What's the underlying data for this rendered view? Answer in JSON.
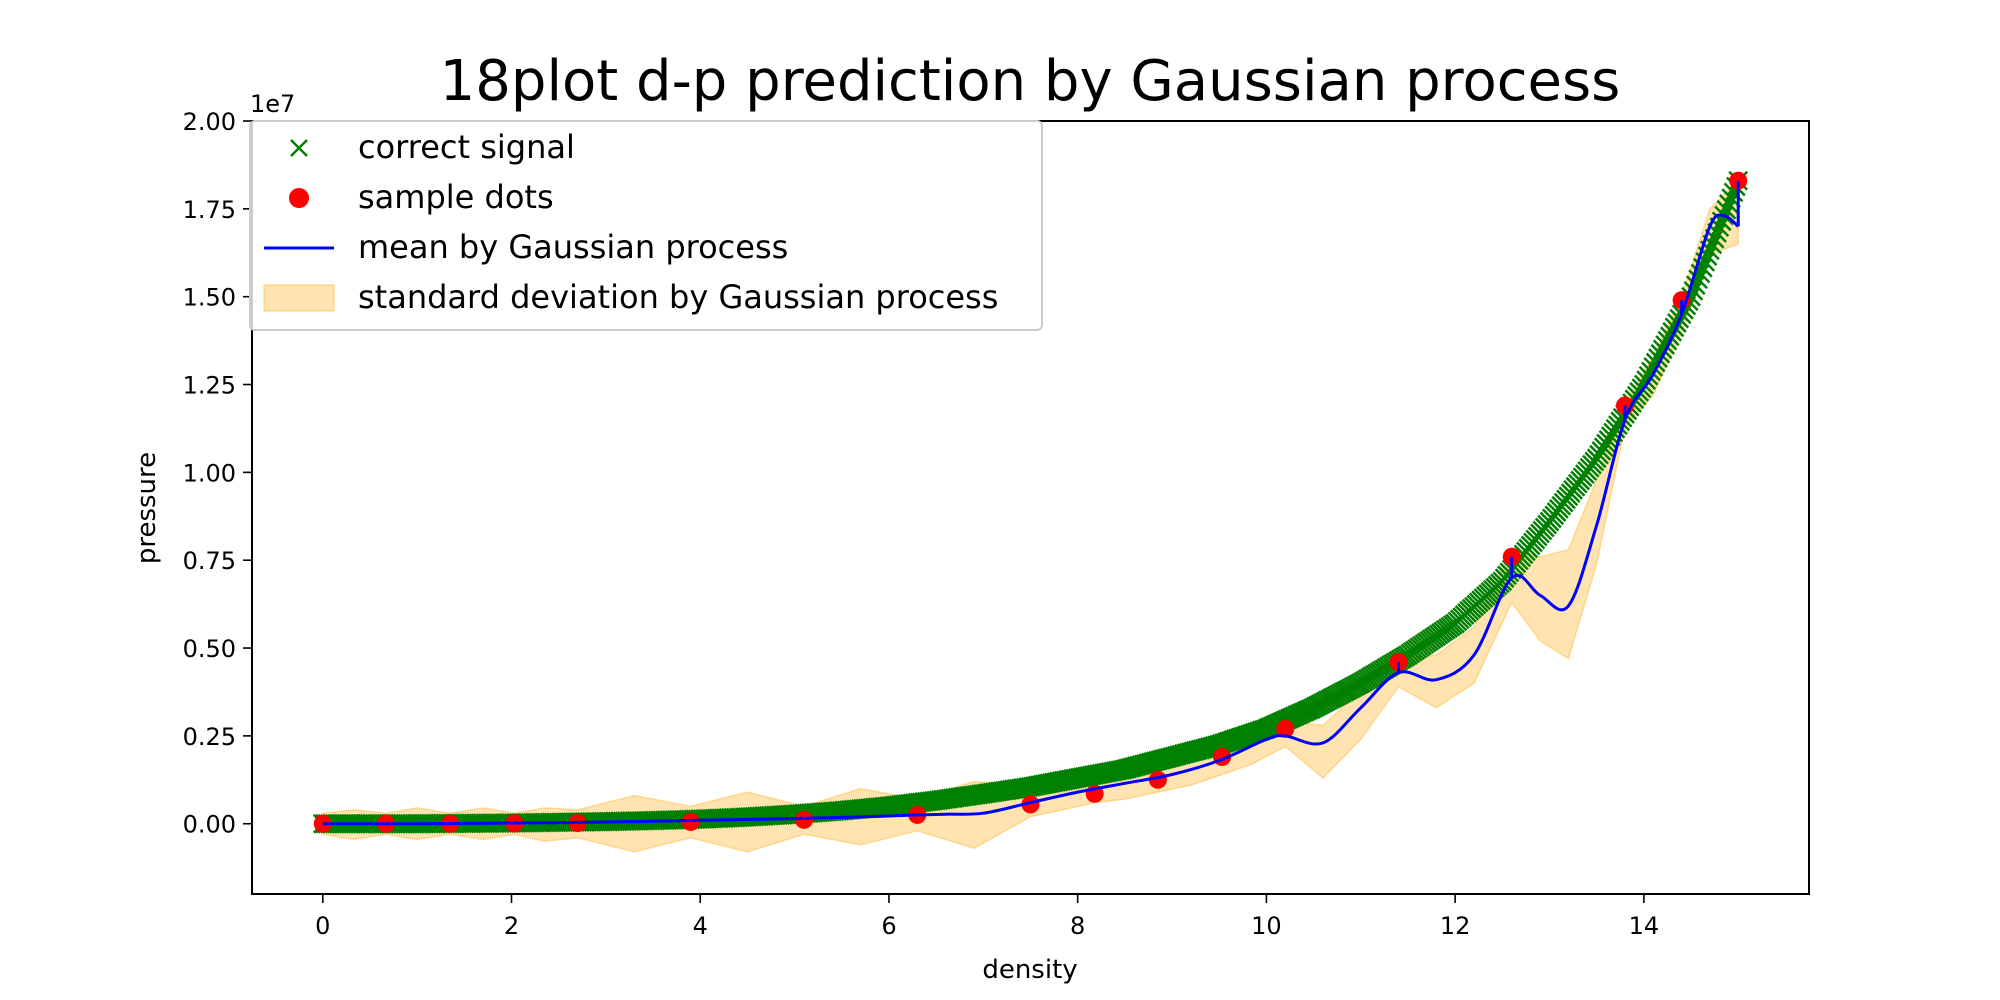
{
  "chart_data": {
    "type": "line",
    "title": "18plot d-p prediction by Gaussian process",
    "xlabel": "density",
    "ylabel": "pressure",
    "y_offset_label": "1e7",
    "xlim": [
      -0.75,
      15.75
    ],
    "ylim": [
      -0.2,
      2.0
    ],
    "x_ticks": [
      0,
      2,
      4,
      6,
      8,
      10,
      12,
      14
    ],
    "x_tick_labels": [
      "0",
      "2",
      "4",
      "6",
      "8",
      "10",
      "12",
      "14"
    ],
    "y_ticks": [
      0.0,
      0.25,
      0.5,
      0.75,
      1.0,
      1.25,
      1.5,
      1.75,
      2.0
    ],
    "y_tick_labels": [
      "0.00",
      "0.25",
      "0.50",
      "0.75",
      "1.00",
      "1.25",
      "1.50",
      "1.75",
      "2.00"
    ],
    "legend": {
      "position": "top-left",
      "entries": [
        {
          "label": "correct signal",
          "color": "#008000",
          "kind": "x-marker"
        },
        {
          "label": "sample dots",
          "color": "#ff0000",
          "kind": "dot"
        },
        {
          "label": "mean by Gaussian process",
          "color": "#0000ff",
          "kind": "line"
        },
        {
          "label": "standard deviation by Gaussian process",
          "color": "#ffa500",
          "kind": "band"
        }
      ]
    },
    "series": [
      {
        "name": "correct signal",
        "color": "#008000",
        "x": [
          0,
          0.5,
          1,
          1.5,
          2,
          2.5,
          3,
          3.5,
          4,
          4.5,
          5,
          5.5,
          6,
          6.5,
          7,
          7.5,
          8,
          8.5,
          9,
          9.5,
          10,
          10.5,
          11,
          11.5,
          12,
          12.5,
          13,
          13.5,
          14,
          14.5,
          15
        ],
        "y": [
          0.0,
          0.0,
          0.0,
          0.001,
          0.002,
          0.004,
          0.006,
          0.009,
          0.013,
          0.019,
          0.027,
          0.037,
          0.05,
          0.066,
          0.085,
          0.105,
          0.13,
          0.155,
          0.19,
          0.225,
          0.27,
          0.33,
          0.4,
          0.48,
          0.57,
          0.69,
          0.86,
          1.04,
          1.25,
          1.5,
          1.83
        ]
      },
      {
        "name": "sample dots",
        "color": "#ff0000",
        "x": [
          0,
          0.67,
          1.35,
          2.03,
          2.7,
          3.9,
          5.1,
          6.3,
          7.5,
          8.18,
          8.85,
          9.53,
          10.2,
          11.4,
          12.6,
          13.8,
          14.4,
          15.0
        ],
        "y": [
          0.0,
          0.0,
          0.0,
          0.001,
          0.002,
          0.005,
          0.011,
          0.025,
          0.055,
          0.085,
          0.125,
          0.19,
          0.27,
          0.46,
          0.76,
          1.19,
          1.49,
          1.83
        ]
      },
      {
        "name": "mean by Gaussian process",
        "color": "#0000ff",
        "x": [
          0,
          0.5,
          1,
          1.5,
          2,
          2.5,
          3,
          3.5,
          4,
          4.5,
          5,
          5.5,
          6,
          6.3,
          6.6,
          7,
          7.5,
          8,
          8.5,
          9,
          9.5,
          10,
          10.2,
          10.6,
          11,
          11.4,
          11.8,
          12.2,
          12.6,
          12.9,
          13.2,
          13.5,
          13.8,
          14.1,
          14.4,
          14.7,
          14.85,
          15.0
        ],
        "y": [
          0.0,
          0.0,
          0.0,
          0.001,
          0.002,
          0.003,
          0.005,
          0.007,
          0.01,
          0.012,
          0.015,
          0.018,
          0.022,
          0.025,
          0.027,
          0.03,
          0.06,
          0.09,
          0.115,
          0.14,
          0.18,
          0.24,
          0.25,
          0.23,
          0.33,
          0.43,
          0.41,
          0.48,
          0.7,
          0.65,
          0.62,
          0.85,
          1.15,
          1.28,
          1.45,
          1.7,
          1.73,
          1.7
        ]
      }
    ],
    "std_band": {
      "name": "standard deviation by Gaussian process",
      "color": "#ffa500",
      "alpha": 0.3,
      "x": [
        0,
        0.33,
        0.67,
        1.0,
        1.35,
        1.7,
        2.03,
        2.35,
        2.7,
        3.3,
        3.9,
        4.5,
        5.1,
        5.7,
        6.3,
        6.9,
        7.5,
        7.85,
        8.18,
        8.5,
        8.85,
        9.2,
        9.53,
        9.85,
        10.2,
        10.6,
        11.0,
        11.4,
        11.8,
        12.2,
        12.6,
        12.9,
        13.2,
        13.5,
        13.8,
        14.1,
        14.4,
        14.7,
        15.0
      ],
      "upper": [
        0.03,
        0.04,
        0.03,
        0.045,
        0.03,
        0.045,
        0.03,
        0.045,
        0.04,
        0.08,
        0.05,
        0.09,
        0.05,
        0.1,
        0.07,
        0.12,
        0.11,
        0.13,
        0.13,
        0.16,
        0.18,
        0.2,
        0.22,
        0.26,
        0.29,
        0.28,
        0.38,
        0.47,
        0.48,
        0.56,
        0.78,
        0.76,
        0.78,
        0.98,
        1.2,
        1.33,
        1.5,
        1.75,
        1.83
      ],
      "lower": [
        -0.03,
        -0.045,
        -0.03,
        -0.045,
        -0.03,
        -0.045,
        -0.03,
        -0.05,
        -0.04,
        -0.08,
        -0.04,
        -0.08,
        -0.03,
        -0.06,
        -0.02,
        -0.07,
        0.02,
        0.04,
        0.06,
        0.07,
        0.09,
        0.11,
        0.14,
        0.17,
        0.22,
        0.13,
        0.24,
        0.39,
        0.33,
        0.4,
        0.63,
        0.52,
        0.47,
        0.74,
        1.13,
        1.22,
        1.4,
        1.62,
        1.65
      ]
    }
  }
}
